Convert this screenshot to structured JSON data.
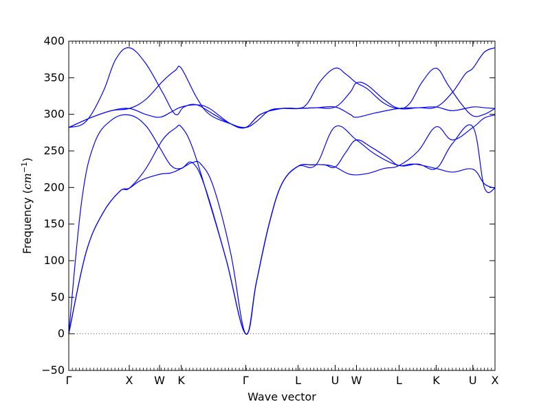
{
  "chart_data": {
    "type": "line",
    "title": "",
    "xlabel": "Wave vector",
    "ylabel": "Frequency (cm⁻¹)",
    "ylabel_main": "Frequency (",
    "ylabel_unit": "cm",
    "ylabel_exp": "−1",
    "ylabel_close": ")",
    "ylim": [
      -50,
      400
    ],
    "xlim": [
      0,
      1
    ],
    "yticks": [
      -50,
      0,
      50,
      100,
      150,
      200,
      250,
      300,
      350,
      400
    ],
    "ytick_labels": [
      "−50",
      "0",
      "50",
      "100",
      "150",
      "200",
      "250",
      "300",
      "350",
      "400"
    ],
    "high_symmetry_points": [
      {
        "label": "Γ",
        "x": 0.0
      },
      {
        "label": "X",
        "x": 0.142
      },
      {
        "label": "W",
        "x": 0.213
      },
      {
        "label": "K",
        "x": 0.264
      },
      {
        "label": "Γ",
        "x": 0.415
      },
      {
        "label": "L",
        "x": 0.538
      },
      {
        "label": "U",
        "x": 0.625
      },
      {
        "label": "W",
        "x": 0.675
      },
      {
        "label": "L",
        "x": 0.775
      },
      {
        "label": "K",
        "x": 0.862
      },
      {
        "label": "U",
        "x": 0.948
      },
      {
        "label": "X",
        "x": 1.0
      }
    ],
    "zero_line": true,
    "grid": false,
    "line_color": "#0000ff",
    "series": [
      {
        "points": [
          [
            0.0,
            282
          ],
          [
            0.04,
            290
          ],
          [
            0.08,
            330
          ],
          [
            0.11,
            375
          ],
          [
            0.142,
            391
          ],
          [
            0.18,
            370
          ],
          [
            0.22,
            330
          ],
          [
            0.25,
            300
          ],
          [
            0.27,
            310
          ],
          [
            0.3,
            313
          ],
          [
            0.34,
            300
          ],
          [
            0.38,
            287
          ],
          [
            0.415,
            282
          ],
          [
            0.44,
            290
          ],
          [
            0.47,
            305
          ],
          [
            0.5,
            308
          ],
          [
            0.538,
            308
          ],
          [
            0.56,
            315
          ],
          [
            0.59,
            345
          ],
          [
            0.625,
            363
          ],
          [
            0.65,
            355
          ],
          [
            0.675,
            343
          ],
          [
            0.7,
            335
          ],
          [
            0.74,
            315
          ],
          [
            0.775,
            308
          ],
          [
            0.8,
            315
          ],
          [
            0.83,
            345
          ],
          [
            0.862,
            363
          ],
          [
            0.89,
            340
          ],
          [
            0.92,
            315
          ],
          [
            0.948,
            298
          ],
          [
            0.975,
            300
          ],
          [
            1.0,
            308
          ]
        ]
      },
      {
        "points": [
          [
            0.0,
            282
          ],
          [
            0.05,
            295
          ],
          [
            0.1,
            305
          ],
          [
            0.142,
            308
          ],
          [
            0.18,
            320
          ],
          [
            0.22,
            345
          ],
          [
            0.25,
            360
          ],
          [
            0.264,
            363
          ],
          [
            0.3,
            323
          ],
          [
            0.33,
            300
          ],
          [
            0.38,
            287
          ],
          [
            0.415,
            282
          ],
          [
            0.45,
            300
          ],
          [
            0.5,
            308
          ],
          [
            0.538,
            308
          ],
          [
            0.58,
            309
          ],
          [
            0.625,
            310
          ],
          [
            0.66,
            300
          ],
          [
            0.675,
            296
          ],
          [
            0.72,
            302
          ],
          [
            0.775,
            308
          ],
          [
            0.82,
            309
          ],
          [
            0.862,
            310
          ],
          [
            0.9,
            330
          ],
          [
            0.93,
            355
          ],
          [
            0.948,
            363
          ],
          [
            0.975,
            385
          ],
          [
            1.0,
            391
          ]
        ]
      },
      {
        "points": [
          [
            0.0,
            282
          ],
          [
            0.05,
            295
          ],
          [
            0.1,
            305
          ],
          [
            0.142,
            308
          ],
          [
            0.18,
            300
          ],
          [
            0.213,
            296
          ],
          [
            0.24,
            303
          ],
          [
            0.264,
            310
          ],
          [
            0.3,
            313
          ],
          [
            0.33,
            308
          ],
          [
            0.38,
            287
          ],
          [
            0.415,
            282
          ],
          [
            0.45,
            300
          ],
          [
            0.5,
            308
          ],
          [
            0.538,
            308
          ],
          [
            0.58,
            309
          ],
          [
            0.625,
            310
          ],
          [
            0.66,
            330
          ],
          [
            0.675,
            343
          ],
          [
            0.7,
            340
          ],
          [
            0.74,
            320
          ],
          [
            0.775,
            308
          ],
          [
            0.82,
            309
          ],
          [
            0.862,
            310
          ],
          [
            0.9,
            305
          ],
          [
            0.948,
            310
          ],
          [
            0.975,
            309
          ],
          [
            1.0,
            308
          ]
        ]
      },
      {
        "points": [
          [
            0.0,
            0
          ],
          [
            0.03,
            180
          ],
          [
            0.06,
            260
          ],
          [
            0.1,
            292
          ],
          [
            0.142,
            299
          ],
          [
            0.18,
            285
          ],
          [
            0.213,
            255
          ],
          [
            0.24,
            230
          ],
          [
            0.264,
            226
          ],
          [
            0.29,
            234
          ],
          [
            0.32,
            200
          ],
          [
            0.37,
            100
          ],
          [
            0.415,
            0
          ],
          [
            0.44,
            70
          ],
          [
            0.47,
            150
          ],
          [
            0.5,
            205
          ],
          [
            0.538,
            229
          ],
          [
            0.57,
            231
          ],
          [
            0.6,
            231
          ],
          [
            0.625,
            228
          ],
          [
            0.65,
            248
          ],
          [
            0.675,
            265
          ],
          [
            0.71,
            255
          ],
          [
            0.75,
            240
          ],
          [
            0.775,
            230
          ],
          [
            0.81,
            232
          ],
          [
            0.862,
            226
          ],
          [
            0.9,
            221
          ],
          [
            0.948,
            225
          ],
          [
            0.975,
            205
          ],
          [
            1.0,
            199
          ]
        ]
      },
      {
        "points": [
          [
            0.0,
            0
          ],
          [
            0.04,
            110
          ],
          [
            0.08,
            165
          ],
          [
            0.12,
            195
          ],
          [
            0.142,
            199
          ],
          [
            0.18,
            225
          ],
          [
            0.22,
            265
          ],
          [
            0.25,
            281
          ],
          [
            0.264,
            283
          ],
          [
            0.29,
            255
          ],
          [
            0.33,
            180
          ],
          [
            0.37,
            100
          ],
          [
            0.415,
            0
          ],
          [
            0.44,
            70
          ],
          [
            0.47,
            150
          ],
          [
            0.5,
            205
          ],
          [
            0.538,
            229
          ],
          [
            0.57,
            231
          ],
          [
            0.6,
            231
          ],
          [
            0.625,
            228
          ],
          [
            0.66,
            218
          ],
          [
            0.7,
            219
          ],
          [
            0.74,
            226
          ],
          [
            0.775,
            230
          ],
          [
            0.82,
            250
          ],
          [
            0.862,
            283
          ],
          [
            0.9,
            265
          ],
          [
            0.948,
            282
          ],
          [
            0.975,
            295
          ],
          [
            1.0,
            299
          ]
        ]
      },
      {
        "points": [
          [
            0.0,
            0
          ],
          [
            0.04,
            110
          ],
          [
            0.08,
            165
          ],
          [
            0.12,
            195
          ],
          [
            0.142,
            199
          ],
          [
            0.17,
            210
          ],
          [
            0.213,
            218
          ],
          [
            0.24,
            220
          ],
          [
            0.264,
            226
          ],
          [
            0.29,
            234
          ],
          [
            0.31,
            232
          ],
          [
            0.34,
            200
          ],
          [
            0.38,
            110
          ],
          [
            0.415,
            0
          ],
          [
            0.44,
            70
          ],
          [
            0.47,
            150
          ],
          [
            0.5,
            205
          ],
          [
            0.538,
            229
          ],
          [
            0.58,
            231
          ],
          [
            0.625,
            283
          ],
          [
            0.675,
            265
          ],
          [
            0.72,
            245
          ],
          [
            0.775,
            230
          ],
          [
            0.82,
            232
          ],
          [
            0.862,
            226
          ],
          [
            0.9,
            260
          ],
          [
            0.948,
            283
          ],
          [
            0.975,
            200
          ],
          [
            1.0,
            199
          ]
        ]
      }
    ]
  }
}
